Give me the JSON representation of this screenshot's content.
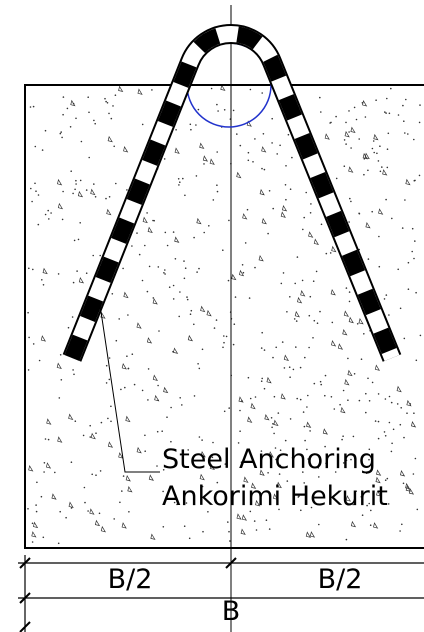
{
  "labels": {
    "note_line1": "Steel Anchoring",
    "note_line2": "Ankorimi Hekurit"
  },
  "dimensions": {
    "left_half": "B/2",
    "right_half": "B/2",
    "total": "B"
  }
}
